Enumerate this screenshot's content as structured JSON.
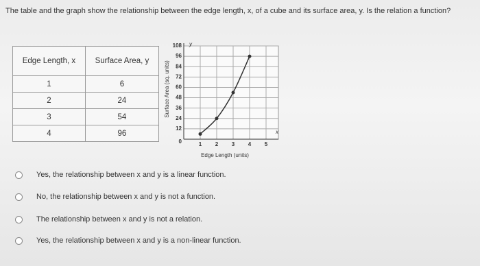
{
  "question": "The table and the graph show the relationship between the edge length, x, of a cube and its surface area, y. Is the relation a function?",
  "table": {
    "header": [
      "Edge Length, x",
      "Surface Area, y"
    ],
    "rows": [
      [
        1,
        6
      ],
      [
        2,
        24
      ],
      [
        3,
        54
      ],
      [
        4,
        96
      ]
    ]
  },
  "chart_data": {
    "type": "line",
    "x": [
      1,
      2,
      3,
      4
    ],
    "values": [
      6,
      24,
      54,
      96
    ],
    "xlabel": "Edge Length (units)",
    "ylabel": "Surface Area (sq. units)",
    "x_axis_name": "x",
    "y_axis_name": "y",
    "xlim": [
      0,
      5.5
    ],
    "ylim": [
      0,
      108
    ],
    "xticks": [
      1,
      2,
      3,
      4,
      5
    ],
    "yticks": [
      0,
      12,
      24,
      36,
      48,
      60,
      72,
      84,
      96,
      108
    ],
    "grid": true,
    "color": "#333333"
  },
  "options": [
    "Yes, the relationship between x and y is a linear function.",
    "No, the relationship between x and y is not a function.",
    "The relationship between x and y is not a relation.",
    "Yes, the relationship between x and y is a non-linear function."
  ]
}
